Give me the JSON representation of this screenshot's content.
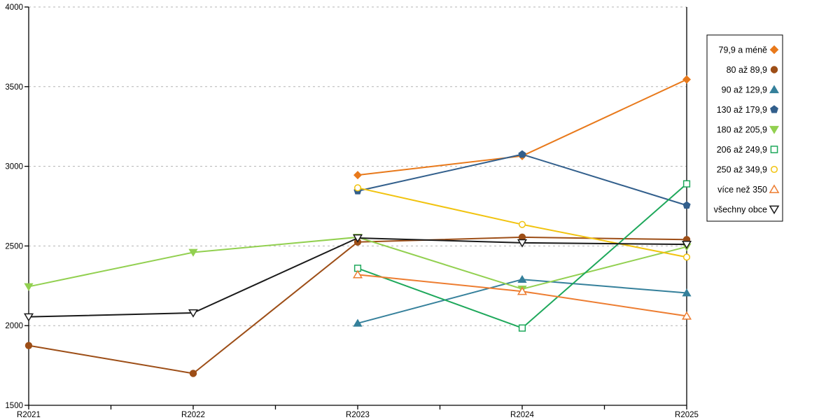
{
  "chart_data": {
    "type": "line",
    "title": "",
    "xlabel": "",
    "ylabel": "",
    "categories": [
      "R2021",
      "R2022",
      "R2023",
      "R2024",
      "R2025"
    ],
    "ylim": [
      1500,
      4000
    ],
    "yticks": [
      1500,
      2000,
      2500,
      3000,
      3500,
      4000
    ],
    "ytick_labels": [
      "1500",
      "2000",
      "2500",
      "3000",
      "3500",
      "4000"
    ],
    "grid": "horizontal-dashed",
    "legend_position": "right",
    "background_color": "#FFFFFF",
    "axis_color": "#000000",
    "gridline_color": "#B3B3B3",
    "legend_border_color": "#000000",
    "series": [
      {
        "name": "79,9 a méně",
        "marker": "diamond",
        "fill": "solid",
        "color": "#E8791B",
        "values": [
          null,
          null,
          2945,
          3065,
          3545
        ]
      },
      {
        "name": "80 až 89,9",
        "marker": "circle",
        "fill": "solid",
        "color": "#9D4E17",
        "values": [
          1875,
          1700,
          2525,
          2555,
          2540
        ]
      },
      {
        "name": "90 až 129,9",
        "marker": "triangle-up",
        "fill": "solid",
        "color": "#35809B",
        "values": [
          null,
          null,
          2015,
          2290,
          2205
        ]
      },
      {
        "name": "130 až 179,9",
        "marker": "pentagon",
        "fill": "solid",
        "color": "#325F8C",
        "values": [
          null,
          null,
          2845,
          3075,
          2755
        ]
      },
      {
        "name": "180 až 205,9",
        "marker": "triangle-down",
        "fill": "solid",
        "color": "#92D050",
        "values": [
          2245,
          2460,
          2555,
          2230,
          2495
        ]
      },
      {
        "name": "206 až 249,9",
        "marker": "square",
        "fill": "open",
        "color": "#1EA85B",
        "values": [
          null,
          null,
          2360,
          1985,
          2890
        ]
      },
      {
        "name": "250 až 349,9",
        "marker": "circle",
        "fill": "open",
        "color": "#F1C30F",
        "values": [
          null,
          null,
          2865,
          2635,
          2430
        ]
      },
      {
        "name": "více než 350",
        "marker": "triangle-up",
        "fill": "open",
        "color": "#ED7D31",
        "values": [
          null,
          null,
          2320,
          2215,
          2060
        ]
      },
      {
        "name": "všechny obce",
        "marker": "triangle-down",
        "fill": "open",
        "color": "#1A1A1A",
        "values": [
          2055,
          2080,
          2550,
          2520,
          2510
        ]
      }
    ]
  }
}
